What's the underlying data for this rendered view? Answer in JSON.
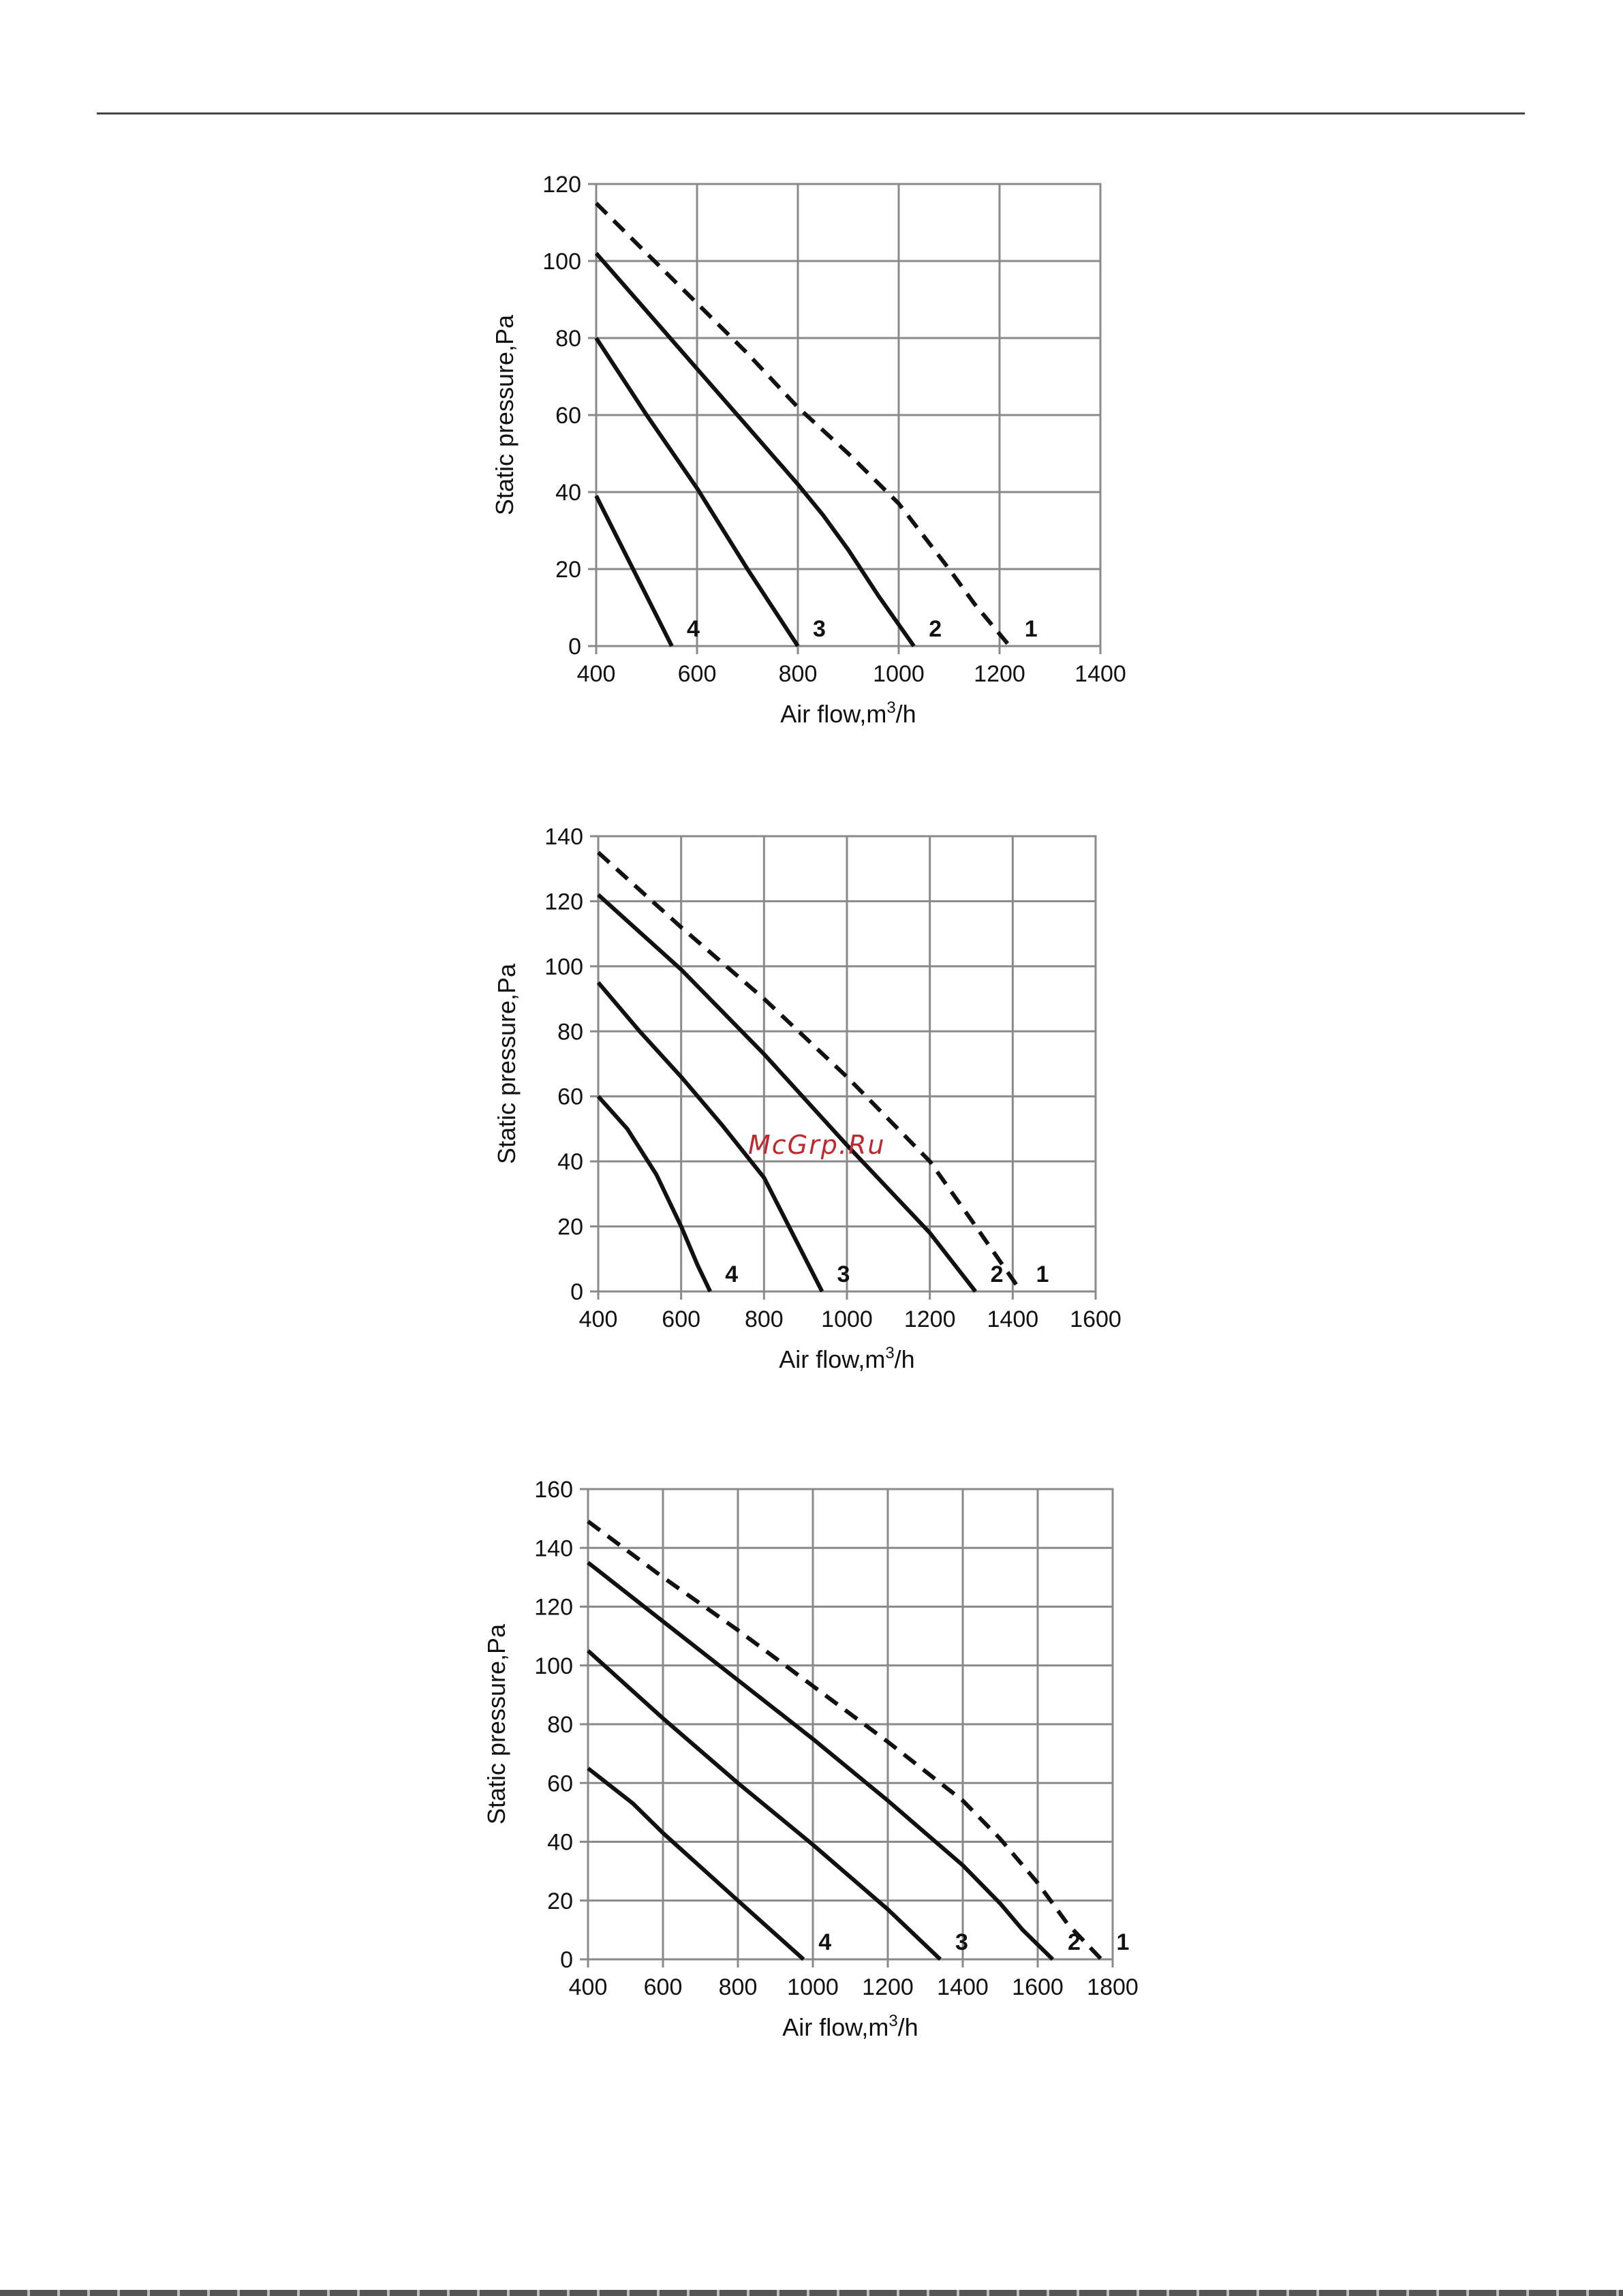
{
  "watermark": "McGrp.Ru",
  "chart_data": [
    {
      "type": "line",
      "xlabel": "Air flow,m³/h",
      "ylabel": "Static pressure,Pa",
      "xlim": [
        400,
        1400
      ],
      "ylim": [
        0,
        120
      ],
      "xticks": [
        400,
        600,
        800,
        1000,
        1200,
        1400
      ],
      "yticks": [
        0,
        20,
        40,
        60,
        80,
        100,
        120
      ],
      "grid": true,
      "series": [
        {
          "name": "1",
          "style": "dashed",
          "points": [
            [
              400,
              115
            ],
            [
              500,
              102
            ],
            [
              600,
              89
            ],
            [
              700,
              76
            ],
            [
              800,
              62
            ],
            [
              900,
              50
            ],
            [
              1000,
              37
            ],
            [
              1100,
              20
            ],
            [
              1150,
              11
            ],
            [
              1220,
              0
            ]
          ]
        },
        {
          "name": "2",
          "style": "solid",
          "points": [
            [
              400,
              102
            ],
            [
              500,
              87
            ],
            [
              600,
              72
            ],
            [
              700,
              57
            ],
            [
              800,
              42
            ],
            [
              850,
              34
            ],
            [
              900,
              25
            ],
            [
              960,
              13
            ],
            [
              1030,
              0
            ]
          ]
        },
        {
          "name": "3",
          "style": "solid",
          "points": [
            [
              400,
              80
            ],
            [
              500,
              60
            ],
            [
              600,
              41
            ],
            [
              700,
              20
            ],
            [
              800,
              0
            ]
          ]
        },
        {
          "name": "4",
          "style": "solid",
          "points": [
            [
              400,
              39
            ],
            [
              450,
              26
            ],
            [
              500,
              13
            ],
            [
              550,
              0
            ]
          ]
        }
      ]
    },
    {
      "type": "line",
      "xlabel": "Air flow,m³/h",
      "ylabel": "Static pressure,Pa",
      "xlim": [
        400,
        1600
      ],
      "ylim": [
        0,
        140
      ],
      "xticks": [
        400,
        600,
        800,
        1000,
        1200,
        1400,
        1600
      ],
      "yticks": [
        0,
        20,
        40,
        60,
        80,
        100,
        120,
        140
      ],
      "grid": true,
      "series": [
        {
          "name": "1",
          "style": "dashed",
          "points": [
            [
              400,
              135
            ],
            [
              600,
              112
            ],
            [
              800,
              90
            ],
            [
              1000,
              66
            ],
            [
              1200,
              40
            ],
            [
              1300,
              22
            ],
            [
              1420,
              0
            ]
          ]
        },
        {
          "name": "2",
          "style": "solid",
          "points": [
            [
              400,
              122
            ],
            [
              600,
              99
            ],
            [
              800,
              73
            ],
            [
              1000,
              45
            ],
            [
              1200,
              18
            ],
            [
              1310,
              0
            ]
          ]
        },
        {
          "name": "3",
          "style": "solid",
          "points": [
            [
              400,
              95
            ],
            [
              500,
              80
            ],
            [
              600,
              66
            ],
            [
              700,
              51
            ],
            [
              800,
              35
            ],
            [
              880,
              15
            ],
            [
              940,
              0
            ]
          ]
        },
        {
          "name": "4",
          "style": "solid",
          "points": [
            [
              400,
              60
            ],
            [
              470,
              50
            ],
            [
              540,
              36
            ],
            [
              600,
              20
            ],
            [
              640,
              8
            ],
            [
              670,
              0
            ]
          ]
        }
      ]
    },
    {
      "type": "line",
      "xlabel": "Air flow,m³/h",
      "ylabel": "Static pressure,Pa",
      "xlim": [
        400,
        1800
      ],
      "ylim": [
        0,
        160
      ],
      "xticks": [
        400,
        600,
        800,
        1000,
        1200,
        1400,
        1600,
        1800
      ],
      "yticks": [
        0,
        20,
        40,
        60,
        80,
        100,
        120,
        140,
        160
      ],
      "grid": true,
      "series": [
        {
          "name": "1",
          "style": "dashed",
          "points": [
            [
              400,
              149
            ],
            [
              600,
              130
            ],
            [
              800,
              112
            ],
            [
              1000,
              93
            ],
            [
              1200,
              74
            ],
            [
              1400,
              54
            ],
            [
              1500,
              41
            ],
            [
              1600,
              26
            ],
            [
              1680,
              12
            ],
            [
              1770,
              0
            ]
          ]
        },
        {
          "name": "2",
          "style": "solid",
          "points": [
            [
              400,
              135
            ],
            [
              600,
              115
            ],
            [
              800,
              95
            ],
            [
              1000,
              75
            ],
            [
              1200,
              54
            ],
            [
              1400,
              32
            ],
            [
              1500,
              19
            ],
            [
              1560,
              10
            ],
            [
              1640,
              0
            ]
          ]
        },
        {
          "name": "3",
          "style": "solid",
          "points": [
            [
              400,
              105
            ],
            [
              600,
              82
            ],
            [
              800,
              60
            ],
            [
              1000,
              39
            ],
            [
              1200,
              17
            ],
            [
              1340,
              0
            ]
          ]
        },
        {
          "name": "4",
          "style": "solid",
          "points": [
            [
              400,
              65
            ],
            [
              520,
              53
            ],
            [
              600,
              43
            ],
            [
              800,
              20
            ],
            [
              975,
              0
            ]
          ]
        }
      ]
    }
  ]
}
